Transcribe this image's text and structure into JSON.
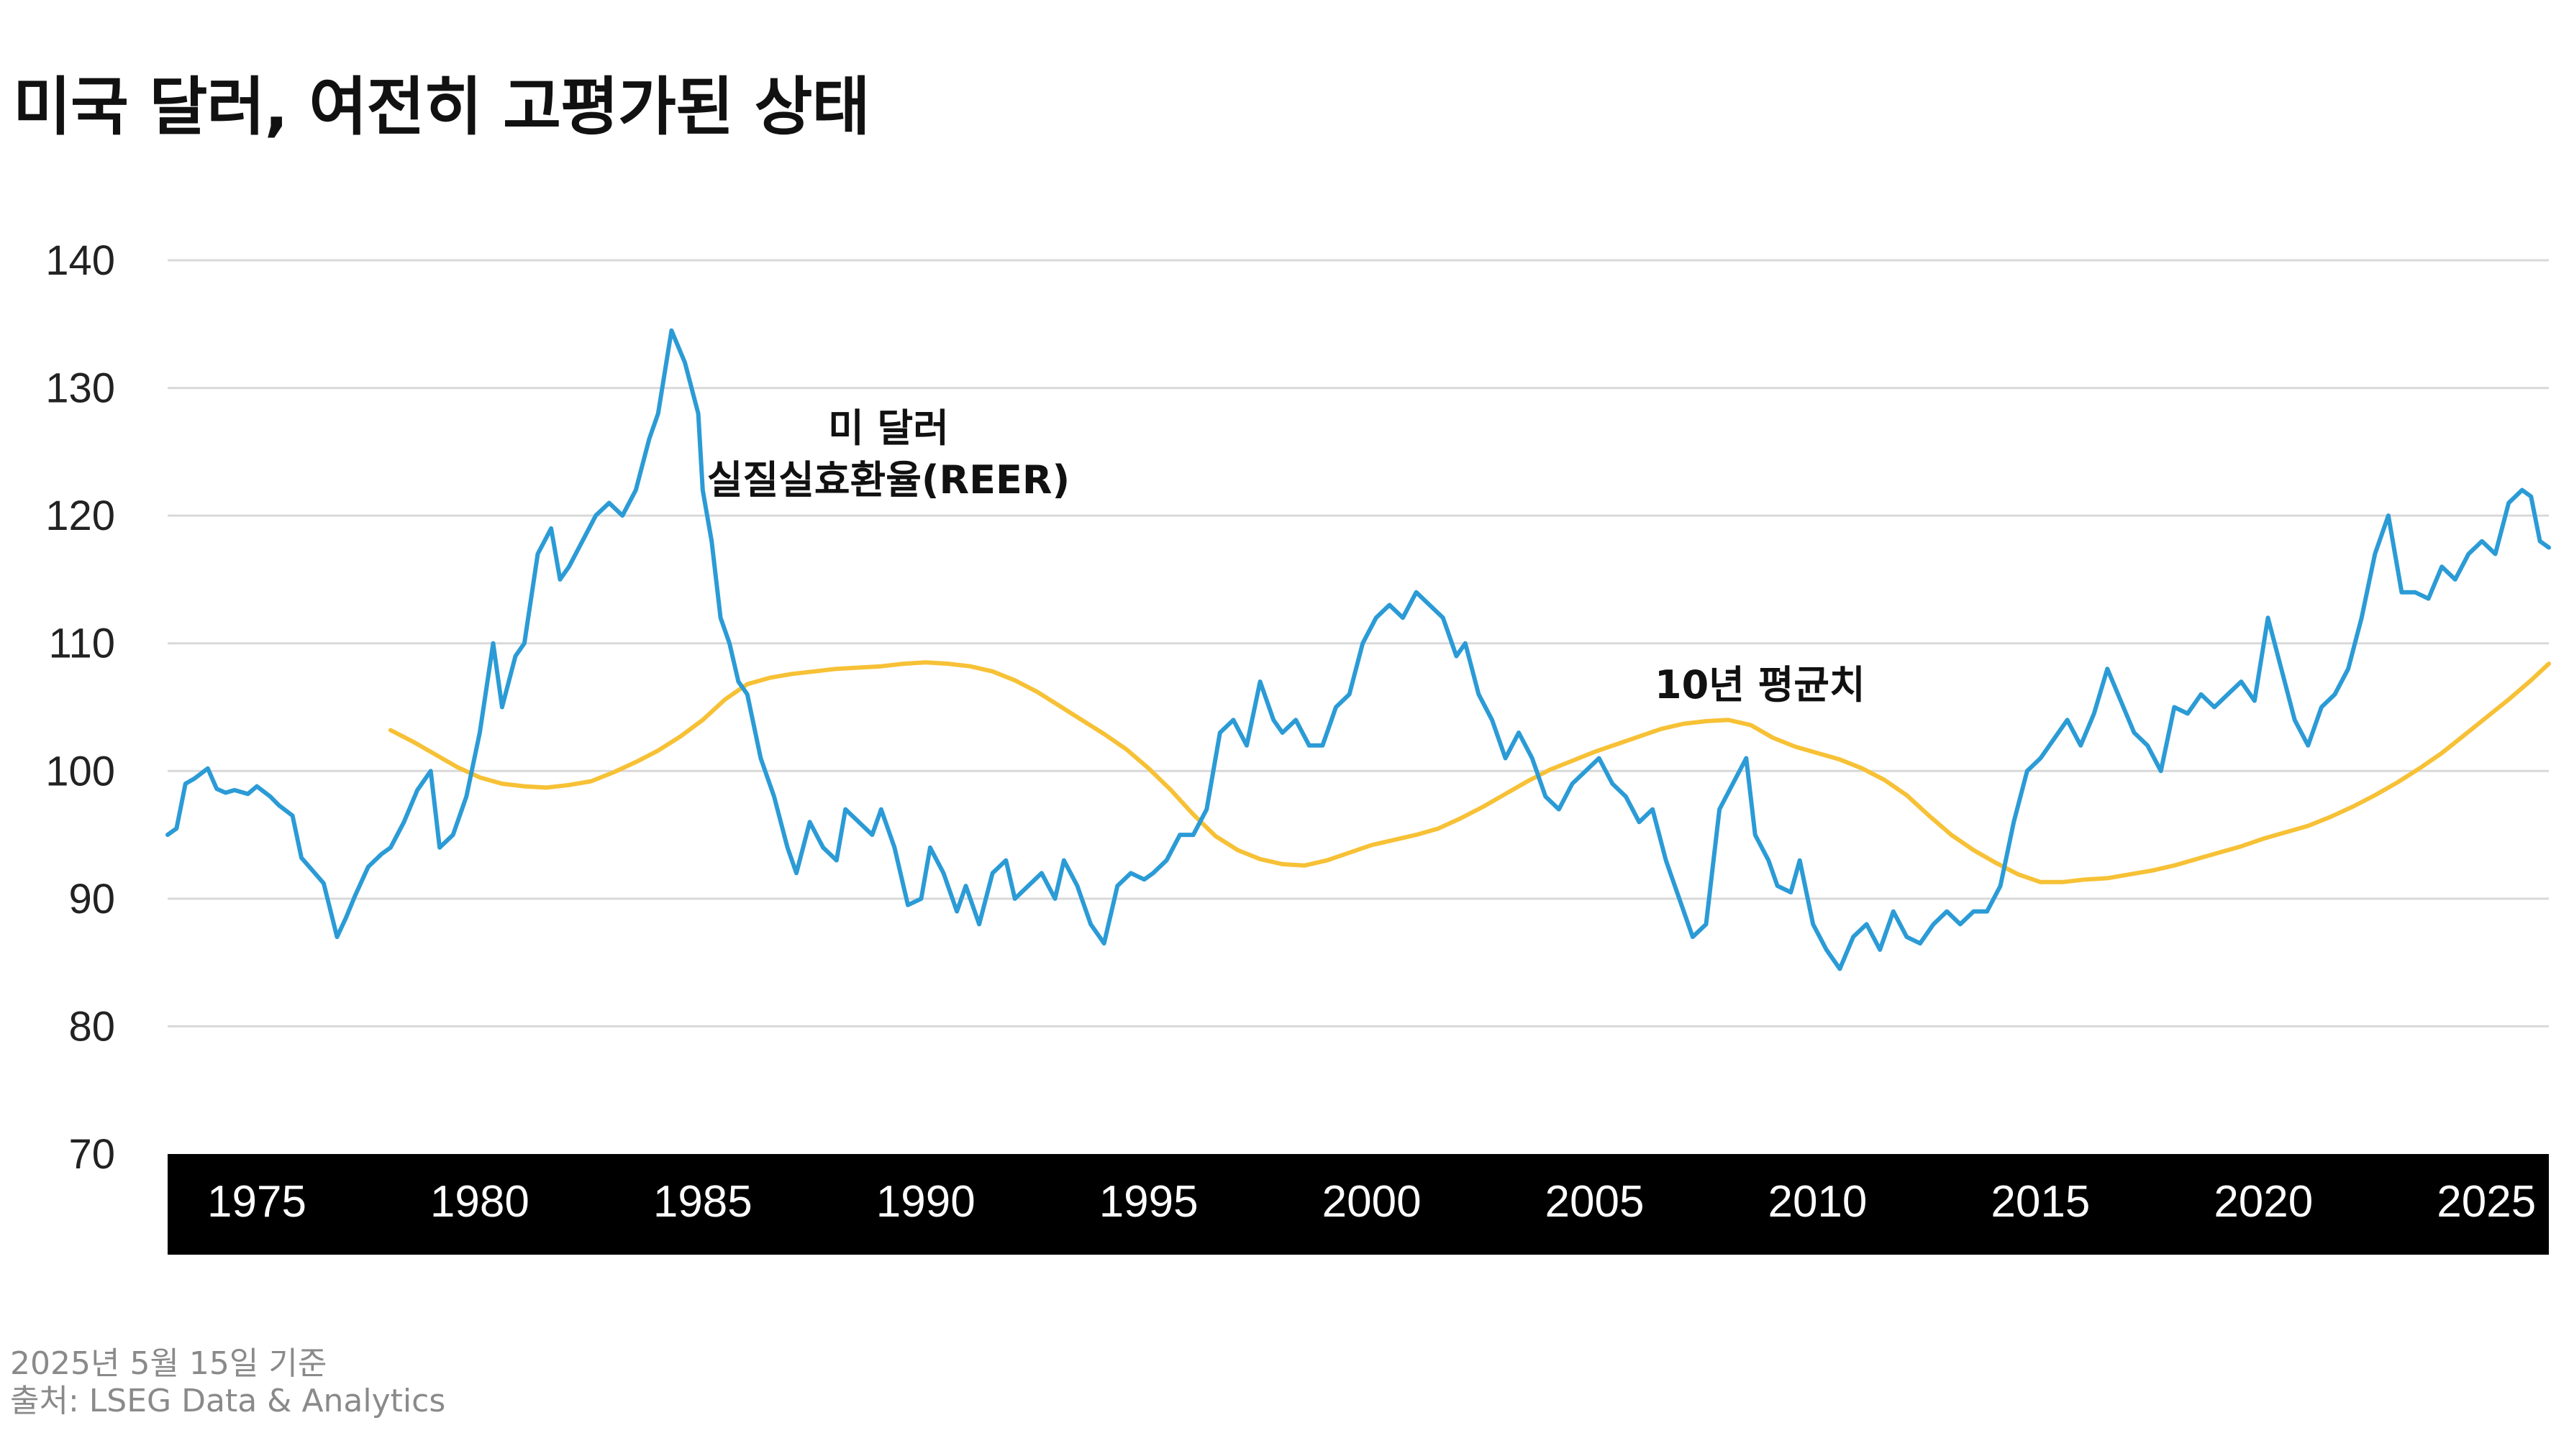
{
  "title": "미국 달러, 여전히 고평가된 상태",
  "footer": {
    "date_note": "2025년 5월 15일 기준",
    "source": "출처: LSEG Data & Analytics"
  },
  "colors": {
    "reer": "#2b9bd6",
    "avg": "#f7c136",
    "grid": "#d9d9d9",
    "axis_band": "#000000"
  },
  "chart_data": {
    "type": "line",
    "title": "미국 달러, 여전히 고평가된 상태",
    "xlabel": "",
    "ylabel": "",
    "xlim": [
      1973.0,
      2026.4
    ],
    "ylim": [
      70,
      140
    ],
    "yticks": [
      "140",
      "130",
      "120",
      "110",
      "100",
      "90",
      "80",
      "70"
    ],
    "ytick_values": [
      140,
      130,
      120,
      110,
      100,
      90,
      80,
      70
    ],
    "xticks": [
      "1975",
      "1980",
      "1985",
      "1990",
      "1995",
      "2000",
      "2005",
      "2010",
      "2015",
      "2020",
      "2025"
    ],
    "xtick_values": [
      1975,
      1980,
      1985,
      1990,
      1995,
      2000,
      2005,
      2010,
      2015,
      2020,
      2025
    ],
    "grid": true,
    "annotations": [
      {
        "text_lines": [
          "미 달러",
          "실질실효환율(REER)"
        ],
        "series": "reer"
      },
      {
        "text": "10년 평균치",
        "series": "avg"
      }
    ],
    "series": [
      {
        "key": "reer",
        "name": "미 달러 실질실효환율(REER)",
        "x": [
          1973.0,
          1973.2,
          1973.4,
          1973.6,
          1973.9,
          1974.1,
          1974.3,
          1974.5,
          1974.8,
          1975.0,
          1975.3,
          1975.5,
          1975.8,
          1976.0,
          1976.3,
          1976.5,
          1976.8,
          1977.0,
          1977.2,
          1977.5,
          1977.8,
          1978.0,
          1978.3,
          1978.6,
          1978.9,
          1979.1,
          1979.4,
          1979.7,
          1980.0,
          1980.3,
          1980.5,
          1980.8,
          1981.0,
          1981.3,
          1981.6,
          1981.8,
          1982.0,
          1982.3,
          1982.6,
          1982.9,
          1983.2,
          1983.5,
          1983.8,
          1984.0,
          1984.3,
          1984.6,
          1984.9,
          1985.0,
          1985.2,
          1985.4,
          1985.6,
          1985.8,
          1986.0,
          1986.3,
          1986.6,
          1986.9,
          1987.1,
          1987.4,
          1987.7,
          1988.0,
          1988.2,
          1988.5,
          1988.8,
          1989.0,
          1989.3,
          1989.6,
          1989.9,
          1990.1,
          1990.4,
          1990.7,
          1990.9,
          1991.2,
          1991.5,
          1991.8,
          1992.0,
          1992.3,
          1992.6,
          1992.9,
          1993.1,
          1993.4,
          1993.7,
          1994.0,
          1994.3,
          1994.6,
          1994.9,
          1995.1,
          1995.4,
          1995.7,
          1996.0,
          1996.3,
          1996.6,
          1996.9,
          1997.2,
          1997.5,
          1997.8,
          1998.0,
          1998.3,
          1998.6,
          1998.9,
          1999.2,
          1999.5,
          1999.8,
          2000.1,
          2000.4,
          2000.7,
          2001.0,
          2001.3,
          2001.6,
          2001.9,
          2002.1,
          2002.4,
          2002.7,
          2003.0,
          2003.3,
          2003.6,
          2003.9,
          2004.2,
          2004.5,
          2004.8,
          2005.1,
          2005.4,
          2005.7,
          2006.0,
          2006.3,
          2006.6,
          2006.9,
          2007.2,
          2007.5,
          2007.8,
          2008.1,
          2008.4,
          2008.6,
          2008.9,
          2009.1,
          2009.4,
          2009.6,
          2009.9,
          2010.2,
          2010.5,
          2010.8,
          2011.1,
          2011.4,
          2011.7,
          2012.0,
          2012.3,
          2012.6,
          2012.9,
          2013.2,
          2013.5,
          2013.8,
          2014.1,
          2014.4,
          2014.7,
          2015.0,
          2015.3,
          2015.6,
          2015.9,
          2016.2,
          2016.5,
          2016.8,
          2017.1,
          2017.4,
          2017.7,
          2018.0,
          2018.3,
          2018.6,
          2018.9,
          2019.2,
          2019.5,
          2019.8,
          2020.1,
          2020.4,
          2020.7,
          2021.0,
          2021.3,
          2021.6,
          2021.9,
          2022.2,
          2022.5,
          2022.8,
          2023.1,
          2023.4,
          2023.7,
          2024.0,
          2024.3,
          2024.6,
          2024.9,
          2025.2,
          2025.5,
          2025.8,
          2026.0,
          2026.2,
          2026.4
        ],
        "y": [
          95.0,
          95.5,
          99.0,
          99.4,
          100.2,
          98.6,
          98.3,
          98.5,
          98.2,
          98.8,
          98.0,
          97.3,
          96.5,
          93.2,
          92.0,
          91.2,
          87.0,
          88.5,
          90.2,
          92.5,
          93.5,
          94.0,
          96.0,
          98.5,
          100.0,
          94.0,
          95.0,
          98.0,
          103.0,
          110.0,
          105.0,
          109.0,
          110.0,
          117.0,
          119.0,
          115.0,
          116.0,
          118.0,
          120.0,
          121.0,
          120.0,
          122.0,
          126.0,
          128.0,
          134.5,
          132.0,
          128.0,
          122.0,
          118.0,
          112.0,
          110.0,
          107.0,
          106.0,
          101.0,
          98.0,
          94.0,
          92.0,
          96.0,
          94.0,
          93.0,
          97.0,
          96.0,
          95.0,
          97.0,
          94.0,
          89.5,
          90.0,
          94.0,
          92.0,
          89.0,
          91.0,
          88.0,
          92.0,
          93.0,
          90.0,
          91.0,
          92.0,
          90.0,
          93.0,
          91.0,
          88.0,
          86.5,
          91.0,
          92.0,
          91.5,
          92.0,
          93.0,
          95.0,
          95.0,
          97.0,
          103.0,
          104.0,
          102.0,
          107.0,
          104.0,
          103.0,
          104.0,
          102.0,
          102.0,
          105.0,
          106.0,
          110.0,
          112.0,
          113.0,
          112.0,
          114.0,
          113.0,
          112.0,
          109.0,
          110.0,
          106.0,
          104.0,
          101.0,
          103.0,
          101.0,
          98.0,
          97.0,
          99.0,
          100.0,
          101.0,
          99.0,
          98.0,
          96.0,
          97.0,
          93.0,
          90.0,
          87.0,
          88.0,
          97.0,
          99.0,
          101.0,
          95.0,
          93.0,
          91.0,
          90.5,
          93.0,
          88.0,
          86.0,
          84.5,
          87.0,
          88.0,
          86.0,
          89.0,
          87.0,
          86.5,
          88.0,
          89.0,
          88.0,
          89.0,
          89.0,
          91.0,
          96.0,
          100.0,
          101.0,
          102.5,
          104.0,
          102.0,
          104.5,
          108.0,
          105.5,
          103.0,
          102.0,
          100.0,
          105.0,
          104.5,
          106.0,
          105.0,
          106.0,
          107.0,
          105.5,
          112.0,
          108.0,
          104.0,
          102.0,
          105.0,
          106.0,
          108.0,
          112.0,
          117.0,
          120.0,
          114.0,
          114.0,
          113.5,
          116.0,
          115.0,
          117.0,
          118.0,
          117.0,
          121.0,
          122.0,
          121.5,
          118.0,
          117.5
        ]
      },
      {
        "key": "avg",
        "name": "10년 평균치",
        "x": [
          1978.0,
          1978.5,
          1979.0,
          1979.5,
          1980.0,
          1980.5,
          1981.0,
          1981.5,
          1982.0,
          1982.5,
          1983.0,
          1983.5,
          1984.0,
          1984.5,
          1985.0,
          1985.5,
          1986.0,
          1986.5,
          1987.0,
          1987.5,
          1988.0,
          1988.5,
          1989.0,
          1989.5,
          1990.0,
          1990.5,
          1991.0,
          1991.5,
          1992.0,
          1992.5,
          1993.0,
          1993.5,
          1994.0,
          1994.5,
          1995.0,
          1995.5,
          1996.0,
          1996.5,
          1997.0,
          1997.5,
          1998.0,
          1998.5,
          1999.0,
          1999.5,
          2000.0,
          2000.5,
          2001.0,
          2001.5,
          2002.0,
          2002.5,
          2003.0,
          2003.5,
          2004.0,
          2004.5,
          2005.0,
          2005.5,
          2006.0,
          2006.5,
          2007.0,
          2007.5,
          2008.0,
          2008.5,
          2009.0,
          2009.5,
          2010.0,
          2010.5,
          2011.0,
          2011.5,
          2012.0,
          2012.5,
          2013.0,
          2013.5,
          2014.0,
          2014.5,
          2015.0,
          2015.5,
          2016.0,
          2016.5,
          2017.0,
          2017.5,
          2018.0,
          2018.5,
          2019.0,
          2019.5,
          2020.0,
          2020.5,
          2021.0,
          2021.5,
          2022.0,
          2022.5,
          2023.0,
          2023.5,
          2024.0,
          2024.5,
          2025.0,
          2025.5,
          2026.0,
          2026.4
        ],
        "y": [
          103.2,
          102.3,
          101.3,
          100.3,
          99.5,
          99.0,
          98.8,
          98.7,
          98.9,
          99.2,
          99.9,
          100.7,
          101.6,
          102.7,
          104.0,
          105.6,
          106.8,
          107.3,
          107.6,
          107.8,
          108.0,
          108.1,
          108.2,
          108.4,
          108.5,
          108.4,
          108.2,
          107.8,
          107.1,
          106.2,
          105.1,
          104.0,
          102.9,
          101.7,
          100.2,
          98.5,
          96.6,
          94.9,
          93.8,
          93.1,
          92.7,
          92.6,
          93.0,
          93.6,
          94.2,
          94.6,
          95.0,
          95.5,
          96.3,
          97.2,
          98.2,
          99.2,
          100.1,
          100.8,
          101.5,
          102.1,
          102.7,
          103.3,
          103.7,
          103.9,
          104.0,
          103.6,
          102.6,
          101.9,
          101.4,
          100.9,
          100.2,
          99.3,
          98.1,
          96.5,
          95.0,
          93.8,
          92.8,
          91.9,
          91.3,
          91.3,
          91.5,
          91.6,
          91.9,
          92.2,
          92.6,
          93.1,
          93.6,
          94.1,
          94.7,
          95.2,
          95.7,
          96.4,
          97.2,
          98.1,
          99.1,
          100.2,
          101.4,
          102.8,
          104.2,
          105.6,
          107.1,
          108.4
        ]
      }
    ]
  }
}
